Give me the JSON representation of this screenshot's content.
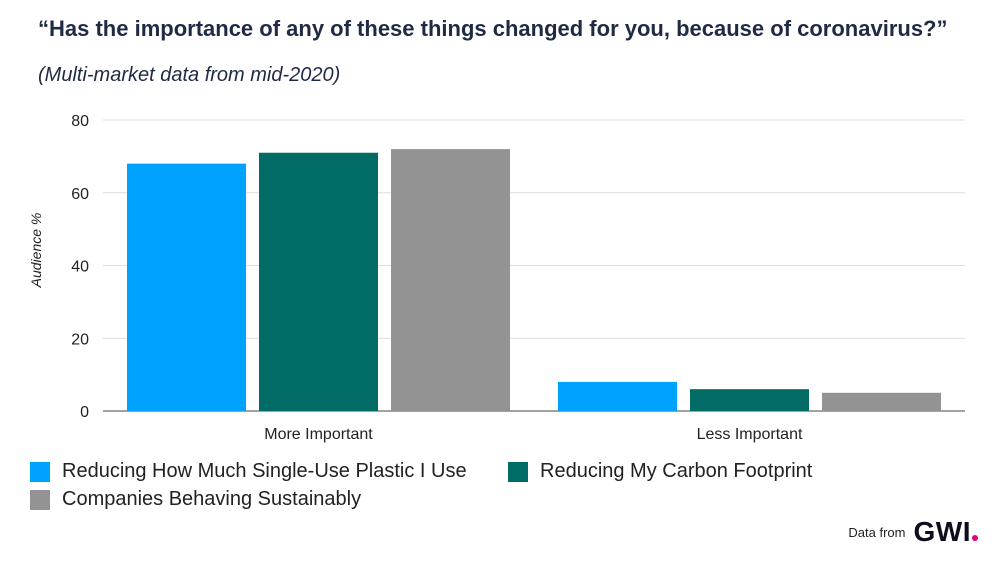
{
  "title": "“Has the importance of any of these things changed for you, because of coronavirus?”",
  "subtitle": "(Multi-market data from mid-2020)",
  "footer": {
    "label": "Data from",
    "logo_text": "GWI"
  },
  "chart_data": {
    "type": "bar",
    "title": "“Has the importance of any of these things changed for you, because of coronavirus?”",
    "subtitle": "(Multi-market data from mid-2020)",
    "xlabel": "",
    "ylabel": "Audience %",
    "ylim": [
      0,
      80
    ],
    "yticks": [
      0,
      20,
      40,
      60,
      80
    ],
    "grid": true,
    "legend": "bottom",
    "categories": [
      "More Important",
      "Less Important"
    ],
    "series": [
      {
        "name": "Reducing How Much Single-Use Plastic I Use",
        "values": [
          68,
          8
        ],
        "color": "#00a2ff"
      },
      {
        "name": "Reducing My Carbon Footprint",
        "values": [
          71,
          6
        ],
        "color": "#006c65"
      },
      {
        "name": "Companies Behaving Sustainably",
        "values": [
          72,
          5
        ],
        "color": "#939393"
      }
    ]
  }
}
